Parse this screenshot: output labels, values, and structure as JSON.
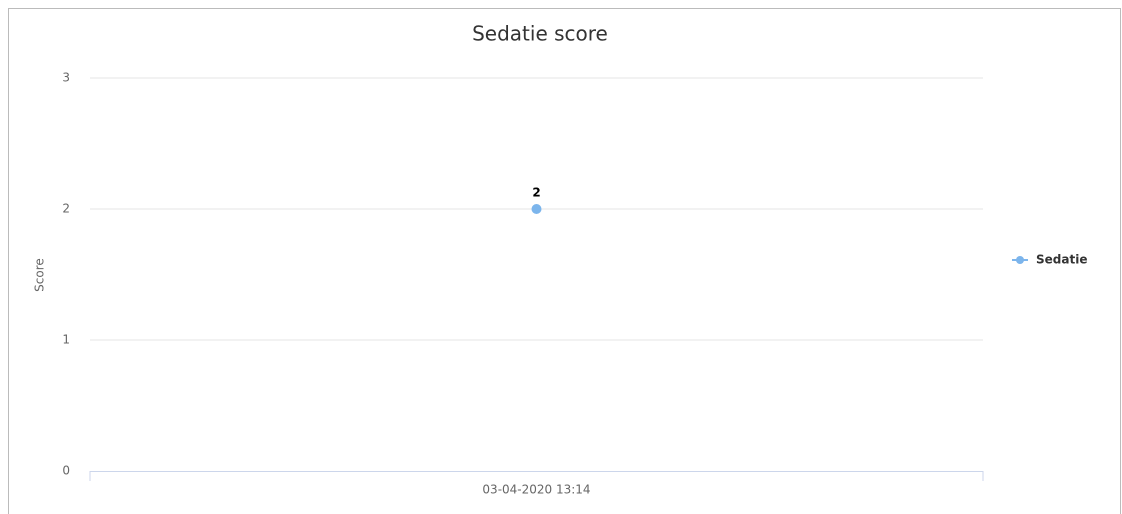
{
  "chart_data": {
    "type": "line",
    "title": "Sedatie score",
    "y_label": "Score",
    "categories": [
      "03-04-2020 13:14"
    ],
    "series": [
      {
        "name": "Sedatie",
        "color": "#7cb5ec",
        "values": [
          2
        ]
      }
    ],
    "ylim": [
      0,
      3
    ],
    "yticks": [
      0,
      1,
      2,
      3
    ],
    "grid": true,
    "legend": "right"
  }
}
